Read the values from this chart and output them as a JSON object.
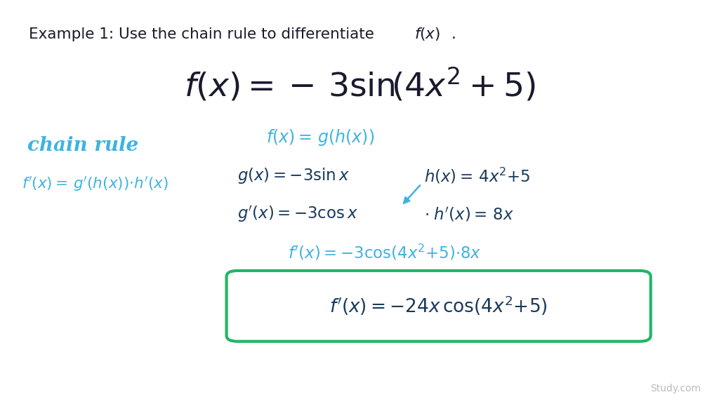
{
  "background_color": "#ffffff",
  "text_color": "#1a1a2e",
  "blue_light": "#3eb3e0",
  "blue_dark": "#1a3a5c",
  "green_color": "#22b566",
  "watermark": "Study.com",
  "watermark_color": "#bbbbbb"
}
